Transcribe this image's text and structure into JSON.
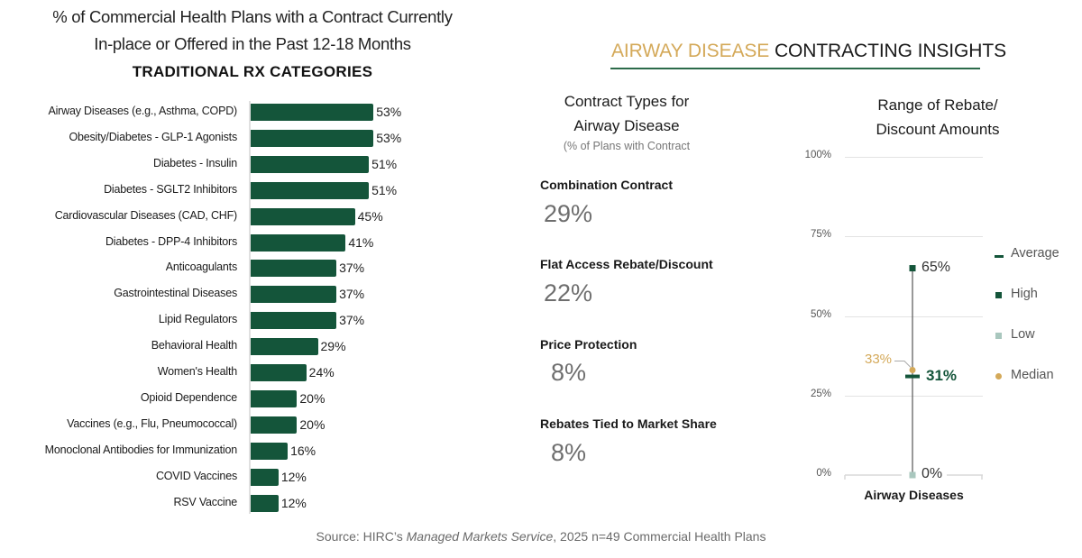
{
  "chart_data": [
    {
      "type": "bar",
      "orientation": "horizontal",
      "title": "% of Commercial Health Plans with a Contract Currently In-place or Offered in the Past 12-18 Months",
      "title_lines": [
        "% of Commercial Health Plans with a Contract Currently",
        "In-place or Offered in the Past 12-18 Months"
      ],
      "subtitle": "TRADITIONAL RX CATEGORIES",
      "categories": [
        "Airway Diseases (e.g., Asthma, COPD)",
        "Obesity/Diabetes - GLP-1 Agonists",
        "Diabetes - Insulin",
        "Diabetes - SGLT2 Inhibitors",
        "Cardiovascular Diseases (CAD, CHF)",
        "Diabetes - DPP-4 Inhibitors",
        "Anticoagulants",
        "Gastrointestinal Diseases",
        "Lipid Regulators",
        "Behavioral Health",
        "Women's Health",
        "Opioid Dependence",
        "Vaccines (e.g., Flu, Pneumococcal)",
        "Monoclonal Antibodies for Immunization",
        "COVID Vaccines",
        "RSV Vaccine"
      ],
      "values": [
        53,
        53,
        51,
        51,
        45,
        41,
        37,
        37,
        37,
        29,
        24,
        20,
        20,
        16,
        12,
        12
      ],
      "value_labels": [
        "53%",
        "53%",
        "51%",
        "51%",
        "45%",
        "41%",
        "37%",
        "37%",
        "37%",
        "29%",
        "24%",
        "20%",
        "20%",
        "16%",
        "12%",
        "12%"
      ],
      "unit": "%",
      "xlim": [
        0,
        100
      ],
      "grid": false,
      "bar_color": "#14553a"
    },
    {
      "type": "range",
      "title": "Range of Rebate/ Discount Amounts",
      "title_lines": [
        "Range of Rebate/",
        "Discount Amounts"
      ],
      "categories": [
        "Airway Diseases"
      ],
      "series": [
        {
          "name": "Average",
          "values": [
            31
          ],
          "label": "31%",
          "color": "#14553a",
          "marker": "dash"
        },
        {
          "name": "High",
          "values": [
            65
          ],
          "label": "65%",
          "color": "#14553a",
          "marker": "square"
        },
        {
          "name": "Low",
          "values": [
            0
          ],
          "label": "0%",
          "color": "#a9c7be",
          "marker": "square"
        },
        {
          "name": "Median",
          "values": [
            33
          ],
          "label": "33%",
          "color": "#d4a959",
          "marker": "circle"
        }
      ],
      "ylim": [
        0,
        100
      ],
      "yticks": [
        "0%",
        "25%",
        "50%",
        "75%",
        "100%"
      ],
      "ytick_values": [
        0,
        25,
        50,
        75,
        100
      ],
      "grid": true,
      "legend": "right"
    }
  ],
  "insights": {
    "title_highlight": "AIRWAY DISEASE",
    "title_rest": "CONTRACTING INSIGHTS",
    "highlight_color": "#d4a959",
    "rule_color": "#2c6b4a"
  },
  "contract_types": {
    "heading_lines": [
      "Contract Types for",
      "Airway Disease"
    ],
    "subheading": "(% of Plans with Contract",
    "items": [
      {
        "label": "Combination Contract",
        "value": "29%"
      },
      {
        "label": "Flat Access Rebate/Discount",
        "value": "22%"
      },
      {
        "label": "Price Protection",
        "value": "8%"
      },
      {
        "label": "Rebates Tied to Market Share",
        "value": "8%"
      }
    ]
  },
  "source": {
    "prefix": "Source: HIRC’s ",
    "italic": "Managed Markets Service",
    "suffix": ", 2025 n=49 Commercial Health Plans"
  }
}
